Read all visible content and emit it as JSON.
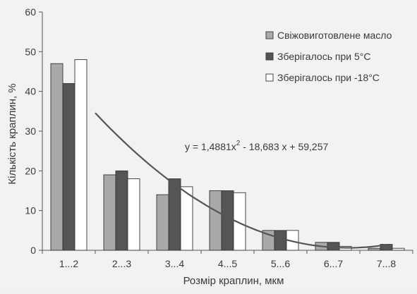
{
  "chart_data": {
    "type": "bar",
    "xlabel": "Розмір краплин, мкм",
    "ylabel": "Кількість краплин, %",
    "ylim": [
      0,
      60
    ],
    "yticks": [
      0,
      10,
      20,
      30,
      40,
      50,
      60
    ],
    "categories": [
      "1...2",
      "2...3",
      "3...4",
      "4...5",
      "5...6",
      "6...7",
      "7...8"
    ],
    "series": [
      {
        "name": "Свіжовиготовлене масло",
        "color": "#a9a9a9",
        "values": [
          47,
          19,
          14,
          15,
          5,
          2,
          0.5
        ]
      },
      {
        "name": "Зберігалось при 5°С",
        "color": "#555555",
        "values": [
          42,
          20,
          18,
          15,
          5,
          2,
          1.5
        ]
      },
      {
        "name": "Зберігалось при -18°С",
        "color": "#ffffff",
        "values": [
          48,
          18,
          16,
          14.5,
          5,
          1,
          0.5
        ]
      }
    ],
    "trendline": {
      "type": "polynomial",
      "coefficients": {
        "a": 1.4881,
        "b": -18.683,
        "c": 59.257
      },
      "x_from": 1.5,
      "x_to": 7.0,
      "color": "#555555"
    },
    "equation": {
      "prefix": "y = 1,4881x",
      "sup": "2",
      "suffix": " - 18,683 x + 59,257"
    },
    "legend_position": "top-right",
    "grid": false
  }
}
